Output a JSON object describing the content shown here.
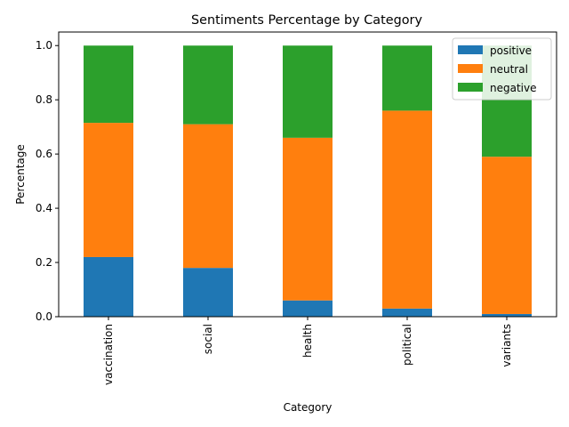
{
  "chart_data": {
    "type": "bar",
    "stacked": true,
    "title": "Sentiments Percentage by Category",
    "xlabel": "Category",
    "ylabel": "Percentage",
    "ylim": [
      0,
      1.05
    ],
    "yticks": [
      "0.0",
      "0.2",
      "0.4",
      "0.6",
      "0.8",
      "1.0"
    ],
    "grid": false,
    "legend_position": "top-right",
    "categories": [
      "vaccination",
      "social",
      "health",
      "political",
      "variants"
    ],
    "series": [
      {
        "name": "positive",
        "color": "#1f77b4",
        "values": [
          0.22,
          0.18,
          0.06,
          0.03,
          0.01
        ]
      },
      {
        "name": "neutral",
        "color": "#ff7f0e",
        "values": [
          0.495,
          0.53,
          0.6,
          0.73,
          0.58
        ]
      },
      {
        "name": "negative",
        "color": "#2ca02c",
        "values": [
          0.285,
          0.29,
          0.34,
          0.24,
          0.41
        ]
      }
    ]
  }
}
